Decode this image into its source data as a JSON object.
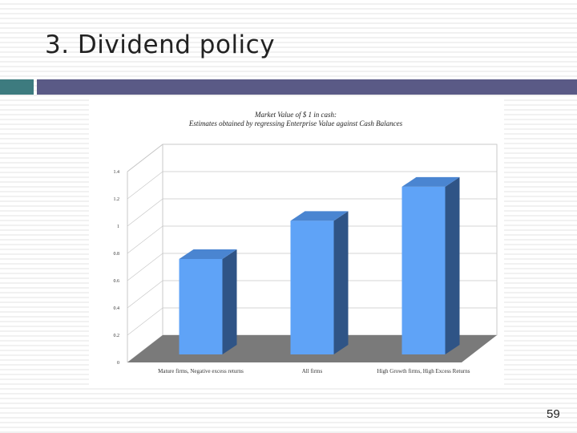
{
  "slide": {
    "title": "3. Dividend policy",
    "page_number": "59"
  },
  "colors": {
    "title_bar_left": "#3d7b7f",
    "title_bar_right": "#5a5a86",
    "bar_front": "#5fa3f7",
    "bar_top": "#4a85d1",
    "bar_side": "#2f5486",
    "floor": "#7a7a7a"
  },
  "chart_data": {
    "type": "bar",
    "title": "Market Value of $ 1 in cash:",
    "subtitle": "Estimates obtained by regressing Enterprise Value against Cash Balances",
    "categories": [
      "Mature firms, Negative excess returns",
      "All firms",
      "High Growth firms, High Excess Returns"
    ],
    "values": [
      0.7,
      0.98,
      1.23
    ],
    "ylim": [
      0,
      1.4
    ],
    "yticks": [
      "0",
      "0.2",
      "0.4",
      "0.6",
      "0.8",
      "1",
      "1.2",
      "1.4"
    ],
    "ytick_values": [
      0,
      0.2,
      0.4,
      0.6,
      0.8,
      1,
      1.2,
      1.4
    ],
    "xlabel": "",
    "ylabel": "",
    "grid": true,
    "legend": "none",
    "three_d": true
  }
}
